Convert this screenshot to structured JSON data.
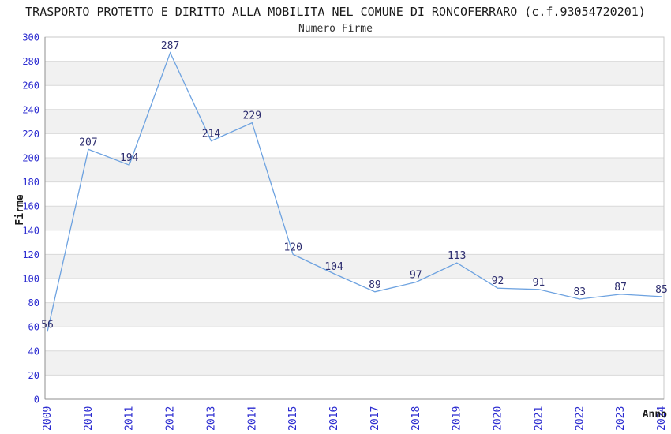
{
  "title": "TRASPORTO PROTETTO E DIRITTO ALLA MOBILITA NEL COMUNE DI RONCOFERRARO (c.f.93054720201)",
  "subtitle": "Numero Firme",
  "chart_data": {
    "type": "line",
    "x": [
      "2009",
      "2010",
      "2011",
      "2012",
      "2013",
      "2014",
      "2015",
      "2016",
      "2017",
      "2018",
      "2019",
      "2020",
      "2021",
      "2022",
      "2023",
      "2024"
    ],
    "series": [
      {
        "name": "Numero Firme",
        "values": [
          56,
          207,
          194,
          287,
          214,
          229,
          120,
          104,
          89,
          97,
          113,
          92,
          91,
          83,
          87,
          85
        ]
      }
    ],
    "title": "TRASPORTO PROTETTO E DIRITTO ALLA MOBILITA NEL COMUNE DI RONCOFERRARO (c.f.93054720201)",
    "subtitle": "Numero Firme",
    "xlabel": "Anno",
    "ylabel": "Firme",
    "ylim": [
      0,
      300
    ],
    "ytick_step": 20,
    "grid": "horizontal gridlines every 20 with alternating shaded bands",
    "legend": "none",
    "markers": "none",
    "value_labels_shown": true,
    "colors": {
      "line": "#6da2e0",
      "tick_label": "#2b2bd0",
      "value_label": "#2e2e70",
      "band": "#f1f1f1",
      "grid": "#d9d9d9",
      "axis": "#8f8f8f",
      "border": "#c9c9c9",
      "background": "#ffffff"
    }
  }
}
